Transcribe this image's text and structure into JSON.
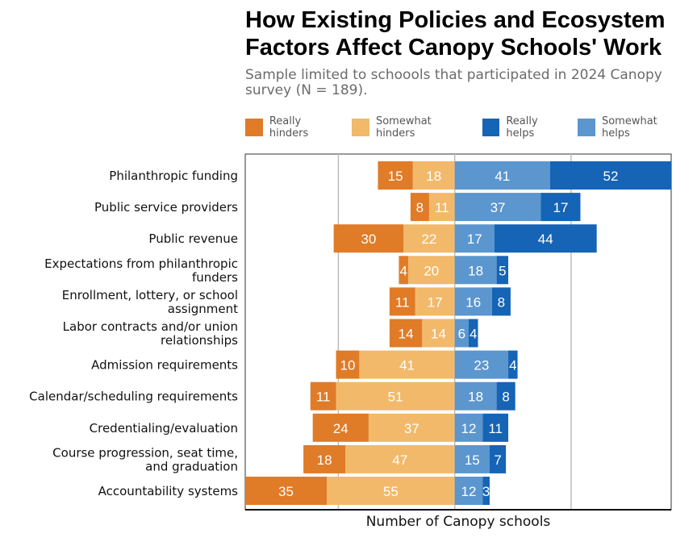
{
  "title": "How Existing Policies and Ecosystem\nFactors Affect Canopy Schools' Work",
  "subtitle": "Sample limited to schoools that participated in 2024 Canopy survey (N = 189).",
  "colors": {
    "really_hinders": "#E07B28",
    "somewhat_hinders": "#F2B96B",
    "really_helps": "#1564B5",
    "somewhat_helps": "#5B96CF"
  },
  "legend": [
    {
      "key": "really_hinders",
      "label": "Really hinders"
    },
    {
      "key": "somewhat_hinders",
      "label": "Somewhat hinders"
    },
    {
      "key": "really_helps",
      "label": "Really helps"
    },
    {
      "key": "somewhat_helps",
      "label": "Somewhat helps"
    }
  ],
  "chart_data": {
    "type": "bar",
    "orientation": "horizontal-diverging",
    "title": "How Existing Policies and Ecosystem Factors Affect Canopy Schools' Work",
    "subtitle": "Sample limited to schoools that participated in 2024 Canopy survey (N = 189).",
    "xlabel": "Number of Canopy schools",
    "ylabel": "",
    "legend_position": "top",
    "grid": true,
    "xlim": [
      -90,
      93
    ],
    "categories": [
      "Philanthropic funding",
      "Public service providers",
      "Public revenue",
      "Expectations from philanthropic funders",
      "Enrollment, lottery, or school assignment",
      "Labor contracts and/or union relationships",
      "Admission requirements",
      "Calendar/scheduling requirements",
      "Credentialing/evaluation",
      "Course progression, seat time, and graduation",
      "Accountability systems"
    ],
    "series": [
      {
        "name": "Really hinders",
        "key": "really_hinders",
        "values": [
          15,
          8,
          30,
          4,
          11,
          14,
          10,
          11,
          24,
          18,
          35
        ]
      },
      {
        "name": "Somewhat hinders",
        "key": "somewhat_hinders",
        "values": [
          18,
          11,
          22,
          20,
          17,
          14,
          41,
          51,
          37,
          47,
          55
        ]
      },
      {
        "name": "Somewhat helps",
        "key": "somewhat_helps",
        "values": [
          41,
          37,
          17,
          18,
          16,
          6,
          23,
          18,
          12,
          15,
          12
        ]
      },
      {
        "name": "Really helps",
        "key": "really_helps",
        "values": [
          52,
          17,
          44,
          5,
          8,
          4,
          4,
          8,
          11,
          7,
          3
        ]
      }
    ]
  }
}
